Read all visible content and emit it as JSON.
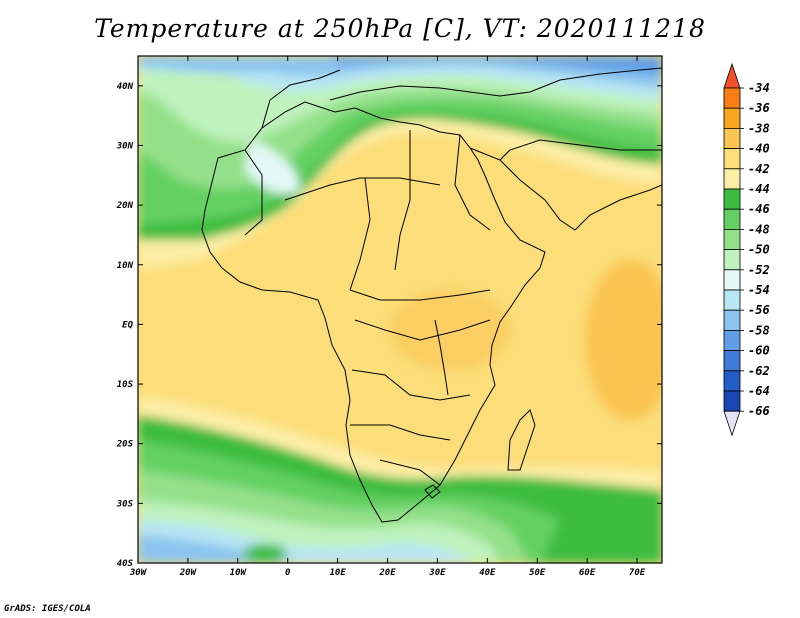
{
  "title": "Temperature at 250hPa [C], VT: 2020111218",
  "credit": "GrADS: IGES/COLA",
  "map": {
    "projection": "lat-lon",
    "lon_range": [
      -30,
      75
    ],
    "lat_range": [
      -40,
      45
    ],
    "lat_ticks": [
      "40N",
      "30N",
      "20N",
      "10N",
      "EQ",
      "10S",
      "20S",
      "30S",
      "40S"
    ],
    "lon_ticks": [
      "30W",
      "20W",
      "10W",
      "0",
      "10E",
      "20E",
      "30E",
      "40E",
      "50E",
      "60E",
      "70E"
    ]
  },
  "colorbar": {
    "labels": [
      "-34",
      "-36",
      "-38",
      "-40",
      "-42",
      "-44",
      "-46",
      "-48",
      "-50",
      "-52",
      "-54",
      "-56",
      "-58",
      "-60",
      "-62",
      "-64",
      "-66"
    ],
    "colors": [
      "#f0502a",
      "#f77f14",
      "#f9a622",
      "#fac552",
      "#fbdd79",
      "#fdeea6",
      "#3cbc41",
      "#64d064",
      "#94e08a",
      "#bff2bd",
      "#e4f8f8",
      "#b8e6f4",
      "#8ac4ef",
      "#609ee8",
      "#3e7cd8",
      "#235ec7",
      "#1847b3",
      "#0c2b7c"
    ]
  }
}
